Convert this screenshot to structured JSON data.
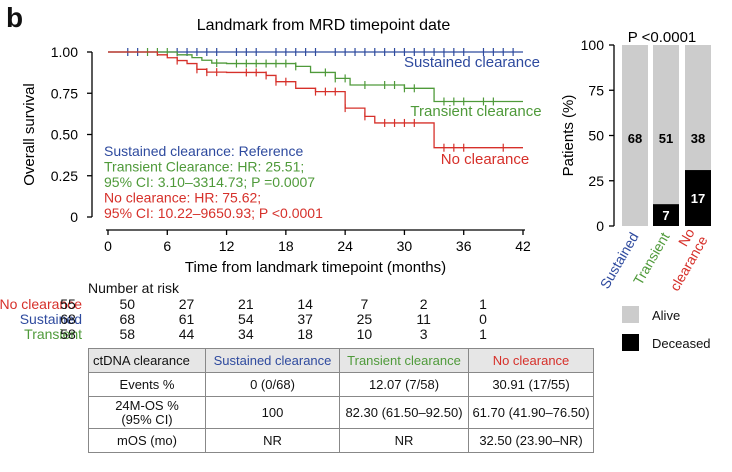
{
  "panel_letter": "b",
  "colors": {
    "sustained": "#2e4a9e",
    "transient": "#4f9a3a",
    "no_clearance": "#d6302a",
    "alive": "#cccccc",
    "deceased": "#000000"
  },
  "chart_data": [
    {
      "type": "line",
      "subtype": "kaplan-meier",
      "title": "Landmark from MRD timepoint date",
      "xlabel": "Time from landmark timepoint (months)",
      "ylabel": "Overall survival",
      "xlim": [
        0,
        42
      ],
      "ylim": [
        0,
        1
      ],
      "xticks": [
        "0",
        "6",
        "12",
        "18",
        "24",
        "30",
        "36",
        "42"
      ],
      "yticks": [
        "0",
        "0.25",
        "0.50",
        "0.75",
        "1.00"
      ],
      "series": [
        {
          "name": "Sustained clearance",
          "color": "#2e4a9e",
          "x": [
            0,
            42
          ],
          "y": [
            1.0,
            1.0
          ],
          "censor_x": [
            2,
            3,
            7,
            8,
            9,
            10,
            11,
            13,
            14,
            15,
            17,
            18,
            19,
            20,
            21,
            23,
            24,
            25,
            26,
            27,
            28,
            29,
            30,
            31,
            32,
            33,
            34,
            35,
            36,
            38,
            39,
            40,
            41
          ]
        },
        {
          "name": "Transient clearance",
          "color": "#4f9a3a",
          "x": [
            0,
            7,
            8.5,
            9.5,
            10.5,
            12,
            19,
            20.5,
            23,
            24.5,
            30,
            33,
            42
          ],
          "y": [
            1.0,
            0.983,
            0.966,
            0.95,
            0.933,
            0.93,
            0.913,
            0.876,
            0.84,
            0.8,
            0.78,
            0.7,
            0.7
          ],
          "censor_x": [
            4,
            5,
            6,
            11,
            13,
            14,
            15,
            16,
            17,
            18,
            19,
            22,
            23,
            24,
            26,
            28,
            29,
            30,
            31,
            34,
            35,
            36,
            38,
            39
          ]
        },
        {
          "name": "No clearance",
          "color": "#d6302a",
          "x": [
            0,
            5,
            6,
            7,
            8,
            9,
            10,
            12,
            16,
            17,
            19,
            21,
            24,
            26,
            27,
            33,
            42
          ],
          "y": [
            1.0,
            0.983,
            0.965,
            0.948,
            0.93,
            0.895,
            0.878,
            0.876,
            0.858,
            0.82,
            0.78,
            0.76,
            0.66,
            0.61,
            0.57,
            0.42,
            0.42
          ],
          "censor_x": [
            7,
            9,
            10,
            11,
            14,
            15,
            16,
            17,
            18,
            21,
            22,
            23,
            24,
            26,
            28,
            29,
            30,
            31,
            34,
            35,
            36,
            40
          ]
        }
      ],
      "curve_labels": [
        "Sustained clearance",
        "Transient clearance",
        "No clearance"
      ],
      "annotations": [
        "Sustained clearance: Reference",
        "Transient Clearance: HR: 25.51;",
        "95% CI: 3.10–3314.73; P =0.0007",
        "No clearance: HR: 75.62;",
        "95% CI: 10.22–9650.93; P <0.0001"
      ],
      "number_at_risk": {
        "title": "Number at risk",
        "rows": [
          {
            "name": "No clearance",
            "values": [
              "55",
              "50",
              "27",
              "21",
              "14",
              "7",
              "2",
              "1"
            ]
          },
          {
            "name": "Sustained",
            "values": [
              "68",
              "68",
              "61",
              "54",
              "37",
              "25",
              "11",
              "0"
            ]
          },
          {
            "name": "Transient",
            "values": [
              "58",
              "58",
              "44",
              "34",
              "18",
              "10",
              "3",
              "1"
            ]
          }
        ]
      }
    },
    {
      "type": "bar",
      "subtype": "stacked-percent",
      "title": "P <0.0001",
      "ylabel": "Patients (%)",
      "ylim": [
        0,
        100
      ],
      "yticks": [
        "0",
        "25",
        "50",
        "75",
        "100"
      ],
      "categories": [
        "Sustained",
        "Transient",
        "No clearance"
      ],
      "series": [
        {
          "name": "Deceased",
          "color": "#000000",
          "values": [
            0,
            12.07,
            30.91
          ],
          "labels": [
            "",
            "7",
            "17"
          ]
        },
        {
          "name": "Alive",
          "color": "#cccccc",
          "values": [
            100,
            87.93,
            69.09
          ],
          "labels": [
            "68",
            "51",
            "38"
          ]
        }
      ],
      "legend": {
        "placement": "bottom-right",
        "items": [
          "Alive",
          "Deceased"
        ]
      }
    },
    {
      "type": "table",
      "header": [
        "ctDNA clearance",
        "Sustained clearance",
        "Transient clearance",
        "No clearance"
      ],
      "rows": [
        [
          "Events %",
          "0 (0/68)",
          "12.07 (7/58)",
          "30.91 (17/55)"
        ],
        [
          "24M-OS % (95% CI)",
          "100",
          "82.30 (61.50–92.50)",
          "61.70 (41.90–76.50)"
        ],
        [
          "mOS (mo)",
          "NR",
          "NR",
          "32.50 (23.90–NR)"
        ]
      ]
    }
  ]
}
